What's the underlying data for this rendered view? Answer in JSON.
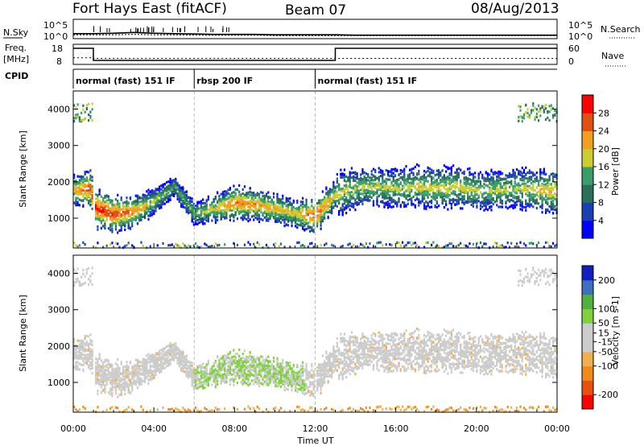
{
  "header": {
    "radar": "Fort Hays East (fitACF)",
    "beam": "Beam 07",
    "date": "08/Aug/2013"
  },
  "colors": {
    "power": [
      "#0000ff",
      "#1c3fb0",
      "#2a6f5a",
      "#3a9d6a",
      "#cccc33",
      "#f0a020",
      "#e05010",
      "#ff0000"
    ],
    "velocity": [
      "#ff0000",
      "#e85010",
      "#f08a1a",
      "#f0b050",
      "#cccccc",
      "#cccccc",
      "#80d040",
      "#50b040",
      "#3f6fbf",
      "#1020c0"
    ]
  },
  "chart_data": [
    {
      "type": "line",
      "name": "noise-panel",
      "left_label_top": "N.Sky",
      "left_ticks": [
        "10^5",
        "10^0"
      ],
      "right_label": "N.Search",
      "right_ticks": [
        "10^5",
        "10^0"
      ],
      "x": [
        0,
        1,
        2,
        3,
        4,
        5,
        6,
        7,
        8,
        9,
        10,
        11,
        12,
        13,
        14,
        15,
        16,
        17,
        18,
        19,
        20,
        21,
        22,
        23,
        24
      ],
      "series": [
        {
          "values": [
            1.3,
            1.3,
            1.4,
            1.6,
            1.4,
            1.3,
            1.2,
            1.1,
            1.1,
            1.1,
            1.0,
            1.0,
            1.0,
            1.0,
            0.9,
            0.9,
            0.9,
            0.9,
            0.9,
            0.9,
            0.9,
            0.9,
            0.9,
            0.9,
            0.9
          ]
        },
        {
          "values": [
            1.0,
            1.0,
            1.0,
            1.1,
            1.0,
            1.0,
            0.9,
            0.9,
            0.9,
            0.9,
            0.8,
            0.8,
            0.8,
            0.8,
            0.8,
            0.8,
            0.8,
            0.8,
            0.8,
            0.8,
            0.8,
            0.8,
            0.8,
            0.8,
            0.8
          ]
        }
      ],
      "ylim": [
        0,
        5
      ]
    },
    {
      "type": "line",
      "name": "freq-panel",
      "left_label": "Freq.",
      "left_unit": "[MHz]",
      "left_ticks": [
        "18",
        "8"
      ],
      "right_label": "Nave",
      "right_ticks": [
        "60",
        "0"
      ],
      "series": [
        {
          "x": [
            0,
            1.0,
            1.0,
            13.0,
            13.0,
            24
          ],
          "values": [
            16,
            16,
            10,
            10,
            16,
            16
          ],
          "ylim": [
            8,
            18
          ]
        },
        {
          "x": [
            0,
            1.0,
            1.0,
            24
          ],
          "values": [
            20,
            20,
            18,
            18
          ],
          "ylim": [
            0,
            60
          ]
        }
      ]
    },
    {
      "type": "table",
      "name": "cpid-panel",
      "label": "CPID",
      "segments": [
        {
          "start": 0,
          "end": 6.0,
          "label": "normal (fast) 151 IF"
        },
        {
          "start": 6.0,
          "end": 12.0,
          "label": "rbsp 200 IF"
        },
        {
          "start": 12.0,
          "end": 24,
          "label": "normal (fast) 151 IF"
        }
      ]
    },
    {
      "type": "heatmap",
      "name": "power-panel",
      "ylabel": "Slant Range [km]",
      "yticks": [
        1000,
        2000,
        3000,
        4000
      ],
      "ylim": [
        180,
        4500
      ],
      "colorbar": {
        "label": "Power [dB]",
        "ticks": [
          4,
          8,
          12,
          16,
          20,
          24,
          28
        ],
        "range": [
          0,
          32
        ]
      },
      "band_center_km": [
        [
          0,
          1800
        ],
        [
          0.8,
          1850
        ],
        [
          1.1,
          1300
        ],
        [
          2,
          1150
        ],
        [
          3,
          1200
        ],
        [
          4,
          1500
        ],
        [
          5,
          1900
        ],
        [
          6,
          1150
        ],
        [
          7,
          1300
        ],
        [
          8,
          1450
        ],
        [
          9,
          1400
        ],
        [
          10,
          1300
        ],
        [
          11,
          1150
        ],
        [
          12,
          1100
        ],
        [
          13,
          1700
        ],
        [
          14,
          1850
        ],
        [
          15,
          1900
        ],
        [
          16,
          1850
        ],
        [
          17,
          1900
        ],
        [
          18,
          1850
        ],
        [
          19,
          1900
        ],
        [
          20,
          1800
        ],
        [
          21,
          1800
        ],
        [
          22,
          1850
        ],
        [
          23,
          1800
        ],
        [
          24,
          1750
        ]
      ],
      "band_peak_db": [
        [
          0,
          22
        ],
        [
          1.1,
          30
        ],
        [
          2,
          28
        ],
        [
          3,
          24
        ],
        [
          4,
          18
        ],
        [
          5,
          14
        ],
        [
          6,
          16
        ],
        [
          7,
          20
        ],
        [
          8,
          26
        ],
        [
          9,
          24
        ],
        [
          10,
          22
        ],
        [
          11,
          20
        ],
        [
          12,
          28
        ],
        [
          13,
          20
        ],
        [
          14,
          18
        ],
        [
          16,
          18
        ],
        [
          18,
          20
        ],
        [
          20,
          18
        ],
        [
          22,
          18
        ],
        [
          24,
          22
        ]
      ]
    },
    {
      "type": "heatmap",
      "name": "velocity-panel",
      "ylabel": "Slant Range [km]",
      "yticks": [
        1000,
        2000,
        3000,
        4000
      ],
      "ylim": [
        180,
        4500
      ],
      "colorbar": {
        "label": "Velocity [m s-1]",
        "ticks": [
          -200,
          -100,
          -50,
          -15,
          15,
          50,
          100,
          200
        ],
        "range": [
          -250,
          250
        ]
      },
      "xlabel": "Time UT",
      "xticks": [
        "00:00",
        "04:00",
        "08:00",
        "12:00",
        "16:00",
        "20:00",
        "00:00"
      ],
      "xlim": [
        0,
        24
      ]
    }
  ]
}
